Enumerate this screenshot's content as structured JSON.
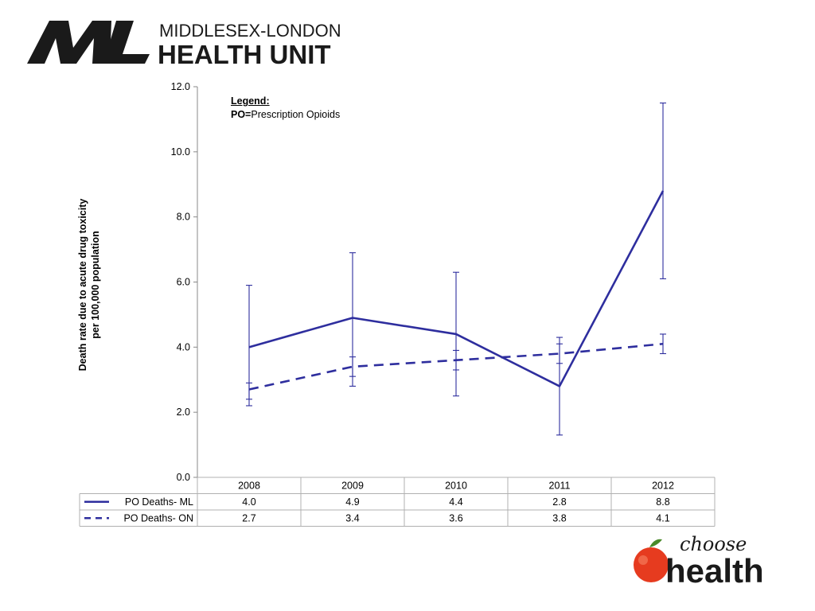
{
  "header": {
    "logo_text_line1": "MIDDLESEX-LONDON",
    "logo_text_line2": "HEALTH UNIT",
    "logo_mark": "ML"
  },
  "footer": {
    "logo_word1": "choose",
    "logo_word2": "health",
    "logo_icon": "apple-icon"
  },
  "chart_data": {
    "type": "line",
    "categories": [
      "2008",
      "2009",
      "2010",
      "2011",
      "2012"
    ],
    "series": [
      {
        "name": "PO Deaths- ML",
        "style": "solid",
        "values": [
          4.0,
          4.9,
          4.4,
          2.8,
          8.8
        ],
        "labels": [
          "4.0",
          "4.9",
          "4.4",
          "2.8",
          "8.8"
        ],
        "err_low": [
          2.4,
          2.8,
          2.5,
          1.3,
          6.1
        ],
        "err_high": [
          5.9,
          6.9,
          6.3,
          4.3,
          11.5
        ]
      },
      {
        "name": "PO Deaths- ON",
        "style": "dashed",
        "values": [
          2.7,
          3.4,
          3.6,
          3.8,
          4.1
        ],
        "labels": [
          "2.7",
          "3.4",
          "3.6",
          "3.8",
          "4.1"
        ],
        "err_low": [
          2.2,
          3.1,
          3.3,
          3.5,
          3.8
        ],
        "err_high": [
          2.9,
          3.7,
          3.9,
          4.1,
          4.4
        ]
      }
    ],
    "ylabel_line1": "Death rate due to acute drug toxicity",
    "ylabel_line2": "per 100,000 population",
    "ylim": [
      0,
      12
    ],
    "yticks": [
      "0.0",
      "2.0",
      "4.0",
      "6.0",
      "8.0",
      "10.0",
      "12.0"
    ],
    "legend_title": "Legend:",
    "legend_abbrev": "PO=",
    "legend_text": "Prescription Opioids",
    "line_color": "#2e2e9e",
    "grid": false,
    "data_table": true
  }
}
